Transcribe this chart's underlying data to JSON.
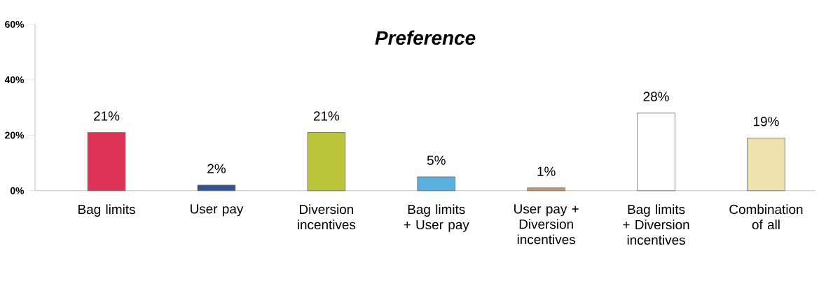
{
  "chart_data": {
    "type": "bar",
    "title": "Preference",
    "categories": [
      "Bag limits",
      "User pay",
      "Diversion incentives",
      "Bag limits + User pay",
      "User pay + Diversion incentives",
      "Bag limits + Diversion incentives",
      "Combination of all"
    ],
    "values": [
      21,
      2,
      21,
      5,
      1,
      28,
      19
    ],
    "value_labels": [
      "21%",
      "2%",
      "21%",
      "5%",
      "1%",
      "28%",
      "19%"
    ],
    "colors": [
      "#e0335a",
      "#2f5597",
      "#bcc43a",
      "#5aaee0",
      "#d9955f",
      "#ffffff",
      "#efe0b0"
    ],
    "ylim": [
      0,
      60
    ],
    "yticks": [
      {
        "value": 0,
        "label": "0%"
      },
      {
        "value": 20,
        "label": "20%"
      },
      {
        "value": 40,
        "label": "40%"
      },
      {
        "value": 60,
        "label": "60%"
      }
    ],
    "grid": false
  }
}
